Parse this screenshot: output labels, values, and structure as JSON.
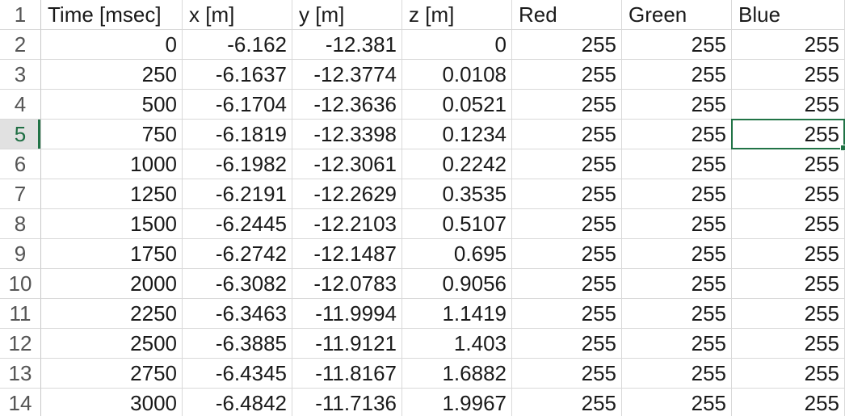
{
  "sheet": {
    "headers": [
      "Time [msec]",
      "x [m]",
      "y [m]",
      "z [m]",
      "Red",
      "Green",
      "Blue"
    ],
    "header_row_number": "1",
    "selected_row_number": "5",
    "rows": [
      {
        "num": "2",
        "cells": [
          "0",
          "-6.162",
          "-12.381",
          "0",
          "255",
          "255",
          "255"
        ]
      },
      {
        "num": "3",
        "cells": [
          "250",
          "-6.1637",
          "-12.3774",
          "0.0108",
          "255",
          "255",
          "255"
        ]
      },
      {
        "num": "4",
        "cells": [
          "500",
          "-6.1704",
          "-12.3636",
          "0.0521",
          "255",
          "255",
          "255"
        ]
      },
      {
        "num": "5",
        "cells": [
          "750",
          "-6.1819",
          "-12.3398",
          "0.1234",
          "255",
          "255",
          "255"
        ]
      },
      {
        "num": "6",
        "cells": [
          "1000",
          "-6.1982",
          "-12.3061",
          "0.2242",
          "255",
          "255",
          "255"
        ]
      },
      {
        "num": "7",
        "cells": [
          "1250",
          "-6.2191",
          "-12.2629",
          "0.3535",
          "255",
          "255",
          "255"
        ]
      },
      {
        "num": "8",
        "cells": [
          "1500",
          "-6.2445",
          "-12.2103",
          "0.5107",
          "255",
          "255",
          "255"
        ]
      },
      {
        "num": "9",
        "cells": [
          "1750",
          "-6.2742",
          "-12.1487",
          "0.695",
          "255",
          "255",
          "255"
        ]
      },
      {
        "num": "10",
        "cells": [
          "2000",
          "-6.3082",
          "-12.0783",
          "0.9056",
          "255",
          "255",
          "255"
        ]
      },
      {
        "num": "11",
        "cells": [
          "2250",
          "-6.3463",
          "-11.9994",
          "1.1419",
          "255",
          "255",
          "255"
        ]
      },
      {
        "num": "12",
        "cells": [
          "2500",
          "-6.3885",
          "-11.9121",
          "1.403",
          "255",
          "255",
          "255"
        ]
      },
      {
        "num": "13",
        "cells": [
          "2750",
          "-6.4345",
          "-11.8167",
          "1.6882",
          "255",
          "255",
          "255"
        ]
      },
      {
        "num": "14",
        "cells": [
          "3000",
          "-6.4842",
          "-11.7136",
          "1.9967",
          "255",
          "255",
          "255"
        ]
      }
    ],
    "colors": {
      "selection": "#217346",
      "gridline": "#d9d9d9",
      "selected_row_header_bg": "#e1e1e1"
    }
  }
}
